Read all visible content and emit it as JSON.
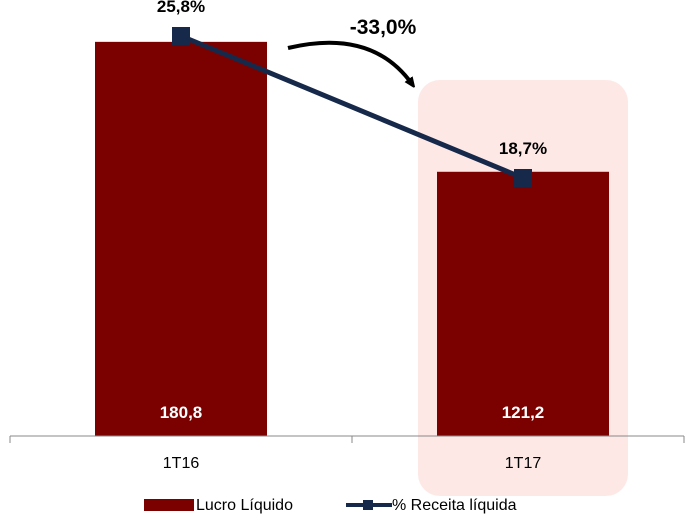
{
  "chart_data": {
    "type": "bar",
    "categories": [
      "1T16",
      "1T17"
    ],
    "ylim": [
      0,
      200
    ],
    "series": [
      {
        "name": "Lucro Líquido",
        "kind": "bar",
        "values": [
          180.8,
          121.2
        ],
        "labels": [
          "180,8",
          "121,2"
        ],
        "color": "#7b0000"
      },
      {
        "name": "% Receita líquida",
        "kind": "line",
        "axis": "secondary",
        "values": [
          25.8,
          18.7
        ],
        "labels": [
          "25,8%",
          "18,7%"
        ],
        "color": "#17294a"
      }
    ],
    "secondary_ylim": [
      5.8,
      27.6
    ],
    "annotation": {
      "text": "-33,0%",
      "kind": "curved-arrow"
    },
    "highlight": {
      "category": "1T17",
      "color": "#fde8e6"
    },
    "legend": {
      "placement": "bottom",
      "items": [
        "Lucro Líquido",
        "% Receita líquida"
      ]
    }
  }
}
